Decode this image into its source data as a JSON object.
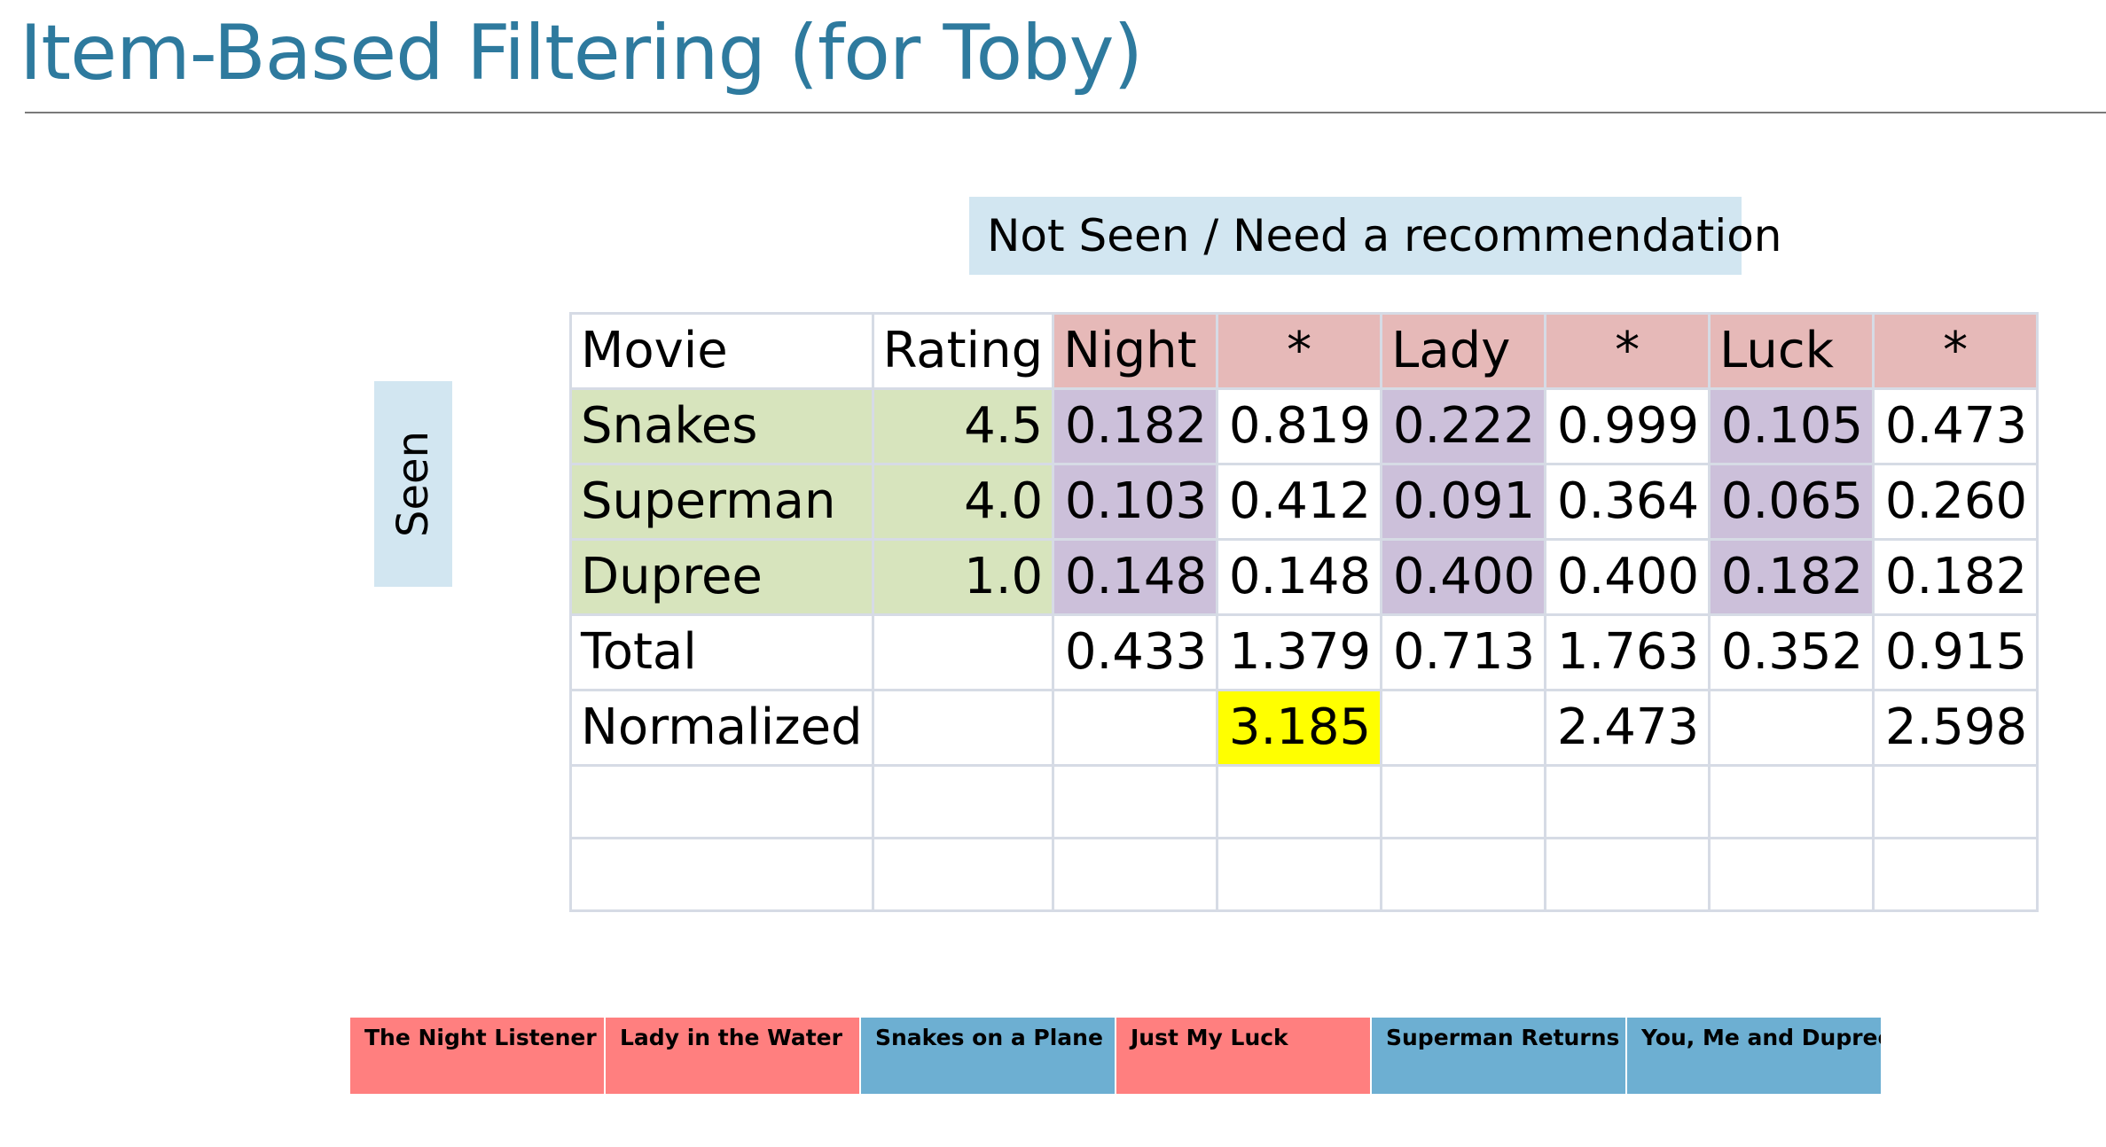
{
  "title": "Item-Based Filtering (for Toby)",
  "banners": {
    "not_seen": "Not Seen / Need a recommendation",
    "seen": "Seen"
  },
  "table": {
    "header": [
      "Movie",
      "Rating",
      "Night",
      "*",
      "Lady",
      "*",
      "Luck",
      "*"
    ],
    "rows": [
      {
        "movie": "Snakes",
        "rating": "4.5",
        "values": [
          "0.182",
          "0.819",
          "0.222",
          "0.999",
          "0.105",
          "0.473"
        ]
      },
      {
        "movie": "Superman",
        "rating": "4.0",
        "values": [
          "0.103",
          "0.412",
          "0.091",
          "0.364",
          "0.065",
          "0.260"
        ]
      },
      {
        "movie": "Dupree",
        "rating": "1.0",
        "values": [
          "0.148",
          "0.148",
          "0.400",
          "0.400",
          "0.182",
          "0.182"
        ]
      }
    ],
    "total": {
      "label": "Total",
      "values": [
        "0.433",
        "1.379",
        "0.713",
        "1.763",
        "0.352",
        "0.915"
      ]
    },
    "normalized": {
      "label": "Normalized",
      "values": [
        "",
        "3.185",
        "",
        "2.473",
        "",
        "2.598"
      ]
    }
  },
  "legend": [
    {
      "label": "The Night Listener",
      "group": "not-seen"
    },
    {
      "label": "Lady in the Water",
      "group": "not-seen"
    },
    {
      "label": "Snakes on a Plane",
      "group": "seen"
    },
    {
      "label": "Just My Luck",
      "group": "not-seen"
    },
    {
      "label": "Superman Returns",
      "group": "seen"
    },
    {
      "label": "You, Me and Dupree",
      "group": "seen"
    }
  ],
  "colors": {
    "title": "#2e7a9e",
    "banner": "#d2e6f1",
    "header_not_seen": "#e6b9b8",
    "seen_rows": "#d7e4bd",
    "similarity": "#ccc0da",
    "highlight": "#ffff00",
    "legend_not_seen": "#ff7f7f",
    "legend_seen": "#6dafd2"
  }
}
